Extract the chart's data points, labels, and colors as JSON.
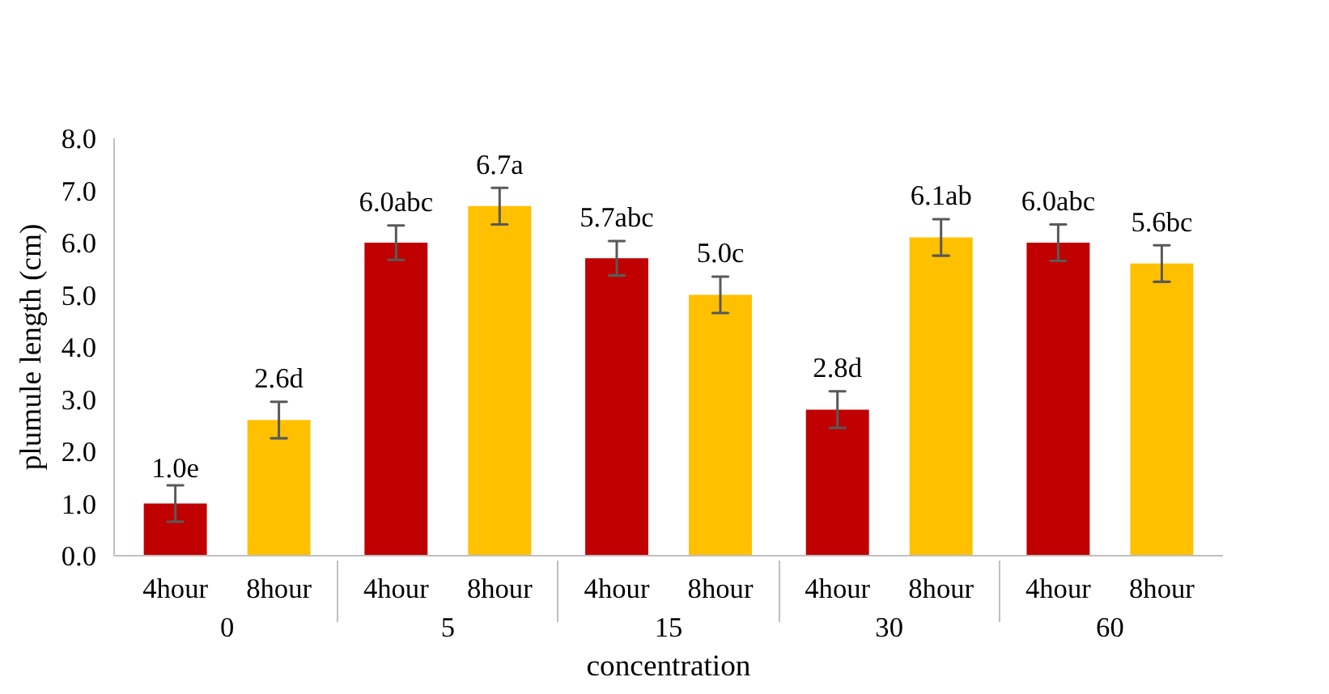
{
  "chart_data": {
    "type": "bar",
    "xlabel": "concentration",
    "ylabel": "plumule length (cm)",
    "categories": [
      "0",
      "5",
      "15",
      "30",
      "60"
    ],
    "series": [
      {
        "name": "4hour",
        "color": "#c00000",
        "values": [
          1.0,
          6.0,
          5.7,
          2.8,
          6.0
        ],
        "errors": [
          0.35,
          0.33,
          0.33,
          0.35,
          0.35
        ],
        "value_labels": [
          "1.0e",
          "6.0abc",
          "5.7abc",
          "2.8d",
          "6.0abc"
        ]
      },
      {
        "name": "8hour",
        "color": "#ffc000",
        "values": [
          2.6,
          6.7,
          5.0,
          6.1,
          5.6
        ],
        "errors": [
          0.35,
          0.35,
          0.35,
          0.35,
          0.35
        ],
        "value_labels": [
          "2.6d",
          "6.7a",
          "5.0c",
          "6.1ab",
          "5.6bc"
        ]
      }
    ],
    "ylim": [
      0,
      8
    ],
    "yticks": [
      {
        "value": 0,
        "label": "0.0"
      },
      {
        "value": 1,
        "label": "1.0"
      },
      {
        "value": 2,
        "label": "2.0"
      },
      {
        "value": 3,
        "label": "3.0"
      },
      {
        "value": 4,
        "label": "4.0"
      },
      {
        "value": 5,
        "label": "5.0"
      },
      {
        "value": 6,
        "label": "6.0"
      },
      {
        "value": 7,
        "label": "7.0"
      },
      {
        "value": 8,
        "label": "8.0"
      }
    ],
    "grid": false
  }
}
